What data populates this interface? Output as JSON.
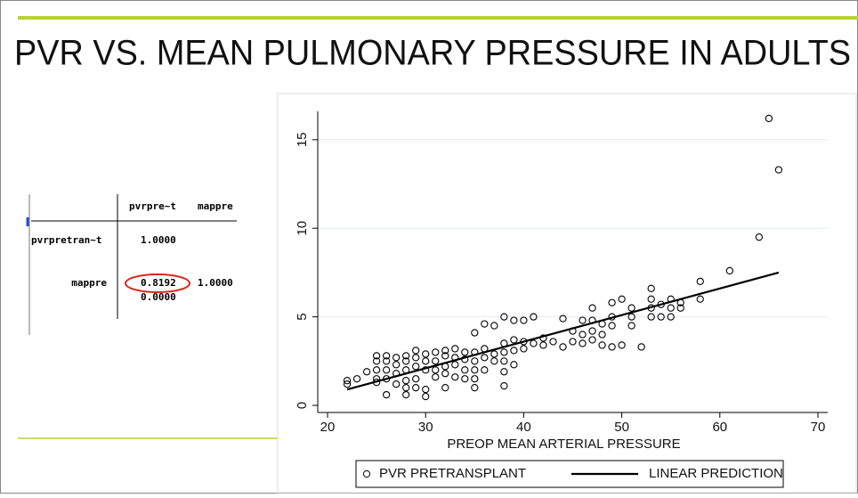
{
  "title": "PVR VS. MEAN PULMONARY PRESSURE IN ADULTS",
  "table": {
    "header": [
      "pvrpre~t",
      "mappre"
    ],
    "rows": [
      [
        "pvrpretran~t",
        "1.0000"
      ],
      [
        "mappre",
        "0.8192",
        "1.0000"
      ],
      [
        "",
        "0.0000"
      ]
    ]
  },
  "chart_data": {
    "type": "scatter",
    "x_label": "PREOP MEAN ARTERIAL PRESSURE",
    "xlim": [
      19,
      71
    ],
    "ylim": [
      -0.4,
      16.6
    ],
    "xticks": [
      20,
      30,
      40,
      50,
      60,
      70
    ],
    "yticks": [
      0,
      5,
      10,
      15
    ],
    "grid": true,
    "legend": "bottom",
    "series": [
      {
        "name": "PVR PRETRANSPLANT",
        "type": "scatter",
        "color": "#000000",
        "x": [
          22,
          22,
          23,
          24,
          25,
          25,
          25,
          25,
          25,
          26,
          26,
          26,
          26,
          26,
          27,
          27,
          27,
          27,
          28,
          28,
          28,
          28,
          28,
          28,
          29,
          29,
          29,
          29,
          29,
          30,
          30,
          30,
          30,
          30,
          31,
          31,
          31,
          31,
          32,
          32,
          32,
          32,
          32,
          33,
          33,
          33,
          33,
          34,
          34,
          34,
          34,
          35,
          35,
          35,
          35,
          35,
          35,
          36,
          36,
          36,
          36,
          37,
          37,
          37,
          38,
          38,
          38,
          38,
          38,
          38,
          39,
          39,
          39,
          39,
          40,
          40,
          40,
          41,
          41,
          42,
          42,
          43,
          44,
          44,
          45,
          45,
          46,
          46,
          46,
          47,
          47,
          47,
          47,
          48,
          48,
          48,
          49,
          49,
          49,
          49,
          50,
          50,
          51,
          51,
          51,
          52,
          53,
          53,
          53,
          53,
          54,
          54,
          55,
          55,
          55,
          56,
          56,
          58,
          58,
          61,
          64,
          65,
          66
        ],
        "values": [
          1.2,
          1.4,
          1.5,
          1.9,
          2.8,
          2.5,
          2.0,
          1.5,
          1.3,
          0.6,
          1.5,
          2.0,
          2.5,
          2.8,
          1.2,
          1.8,
          2.3,
          2.7,
          0.6,
          1.0,
          1.4,
          2.0,
          2.5,
          2.8,
          1.0,
          1.5,
          2.2,
          2.7,
          3.1,
          0.5,
          0.9,
          2.0,
          2.5,
          2.9,
          1.6,
          2.0,
          2.5,
          3.0,
          1.0,
          1.8,
          2.2,
          2.8,
          3.1,
          1.6,
          2.3,
          2.7,
          3.2,
          1.5,
          2.0,
          2.6,
          3.0,
          1.0,
          1.5,
          2.0,
          2.5,
          3.0,
          4.1,
          2.0,
          2.7,
          3.2,
          4.6,
          2.5,
          2.9,
          4.5,
          1.1,
          1.9,
          2.5,
          3.0,
          3.5,
          5.0,
          2.3,
          3.1,
          3.7,
          4.8,
          3.2,
          3.6,
          4.8,
          3.5,
          5.0,
          3.4,
          3.8,
          3.6,
          3.3,
          4.9,
          3.6,
          4.2,
          3.5,
          4.0,
          4.8,
          3.7,
          4.2,
          4.8,
          5.5,
          3.4,
          4.0,
          4.6,
          3.3,
          4.5,
          5.0,
          5.8,
          3.4,
          6.0,
          4.5,
          5.0,
          5.5,
          3.3,
          5.0,
          5.5,
          6.0,
          6.6,
          5.0,
          5.7,
          5.0,
          5.5,
          6.0,
          5.5,
          5.8,
          6.0,
          7.0,
          7.6,
          9.5,
          16.2,
          13.3
        ]
      },
      {
        "name": "LINEAR PREDICTION",
        "type": "line",
        "color": "#000000",
        "x": [
          22,
          66
        ],
        "values": [
          0.9,
          7.5
        ]
      }
    ]
  }
}
